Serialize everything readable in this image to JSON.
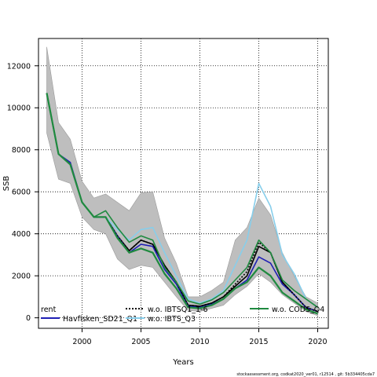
{
  "chart_data": {
    "type": "line",
    "xlabel": "Years",
    "ylabel": "SSB",
    "xlim": [
      1996.3,
      2020.9
    ],
    "ylim": [
      -500,
      13300
    ],
    "grid": true,
    "grid_style": "dotted",
    "legend_placement": "bottom-left inside plot",
    "xticks": [
      2000,
      2005,
      2010,
      2015,
      2020
    ],
    "yticks": [
      0,
      2000,
      4000,
      6000,
      8000,
      10000,
      12000
    ],
    "x": [
      1997,
      1998,
      1999,
      2000,
      2001,
      2002,
      2003,
      2004,
      2005,
      2006,
      2007,
      2008,
      2009,
      2010,
      2011,
      2012,
      2013,
      2014,
      2015,
      2016,
      2017,
      2018,
      2019,
      2020
    ],
    "confidence_band": {
      "color": "#bebebe",
      "lower": [
        8800,
        6600,
        6400,
        4800,
        4200,
        4000,
        2800,
        2300,
        2500,
        2400,
        1700,
        1000,
        350,
        300,
        450,
        600,
        1100,
        1500,
        2100,
        1700,
        1100,
        700,
        300,
        100
      ],
      "upper": [
        12900,
        9300,
        8500,
        6500,
        5700,
        5900,
        5500,
        5100,
        5950,
        6000,
        3800,
        2600,
        1000,
        1000,
        1300,
        1700,
        3700,
        4300,
        5700,
        4900,
        3100,
        2000,
        1000,
        700
      ]
    },
    "series": [
      {
        "name": "rent",
        "color": "#000000",
        "dash": "solid",
        "values": [
          10700,
          7800,
          7300,
          5500,
          4800,
          4800,
          3900,
          3200,
          3700,
          3500,
          2500,
          1700,
          600,
          550,
          700,
          1000,
          1500,
          2000,
          3400,
          3100,
          1700,
          1100,
          500,
          300
        ]
      },
      {
        "name": "Havfisken_SD21_Q1",
        "color": "#1f1fb4",
        "dash": "solid",
        "values": [
          10700,
          7800,
          7400,
          5500,
          4800,
          4800,
          3900,
          3100,
          3500,
          3400,
          2300,
          1600,
          550,
          500,
          650,
          900,
          1400,
          1800,
          2900,
          2600,
          1600,
          1100,
          500,
          300
        ]
      },
      {
        "name": "w.o. IBTSQ1_1-6",
        "color": "#000000",
        "dash": "dotted",
        "values": [
          10700,
          7800,
          7300,
          5500,
          4800,
          4800,
          3900,
          3200,
          3700,
          3500,
          2500,
          1700,
          600,
          550,
          700,
          1000,
          1600,
          2200,
          3600,
          3100,
          1700,
          1100,
          500,
          300
        ]
      },
      {
        "name": "w.o. IBTS_Q3",
        "color": "#87ceeb",
        "dash": "solid",
        "values": [
          10700,
          7800,
          7300,
          5500,
          4800,
          4800,
          4200,
          3700,
          4200,
          4300,
          3100,
          2000,
          900,
          700,
          900,
          1300,
          2500,
          3700,
          6400,
          5300,
          3000,
          2100,
          900,
          500
        ]
      },
      {
        "name": "w.o. CODS_Q4",
        "color": "#1f8a3f",
        "dash": "solid",
        "values": [
          10700,
          7800,
          7300,
          5500,
          4800,
          5100,
          4300,
          3600,
          3900,
          3700,
          2400,
          1700,
          800,
          650,
          850,
          1200,
          1800,
          2400,
          3700,
          3100,
          1800,
          1300,
          900,
          500
        ]
      },
      {
        "name": "",
        "color": "#1f8a3f",
        "dash": "solid",
        "width": 2.2,
        "values": [
          10700,
          7800,
          7300,
          5500,
          4800,
          4800,
          3800,
          3100,
          3300,
          3100,
          2100,
          1400,
          500,
          450,
          600,
          900,
          1400,
          1700,
          2400,
          2000,
          1200,
          800,
          400,
          200
        ]
      }
    ],
    "legend": [
      {
        "label": "rent",
        "color": "#000000",
        "dash": "solid"
      },
      {
        "label": "Havfisken_SD21_Q1",
        "color": "#1f1fb4",
        "dash": "solid"
      },
      {
        "label": "w.o. IBTSQ1_1-6",
        "color": "#000000",
        "dash": "dotted"
      },
      {
        "label": "w.o. IBTS_Q3",
        "color": "#87ceeb",
        "dash": "solid"
      },
      {
        "label": "w.o. CODS_Q4",
        "color": "#1f8a3f",
        "dash": "solid"
      }
    ],
    "footer": "stockassessment.org, codkat2020_ver01, r12514 ,  git: 5b334405cda7"
  }
}
